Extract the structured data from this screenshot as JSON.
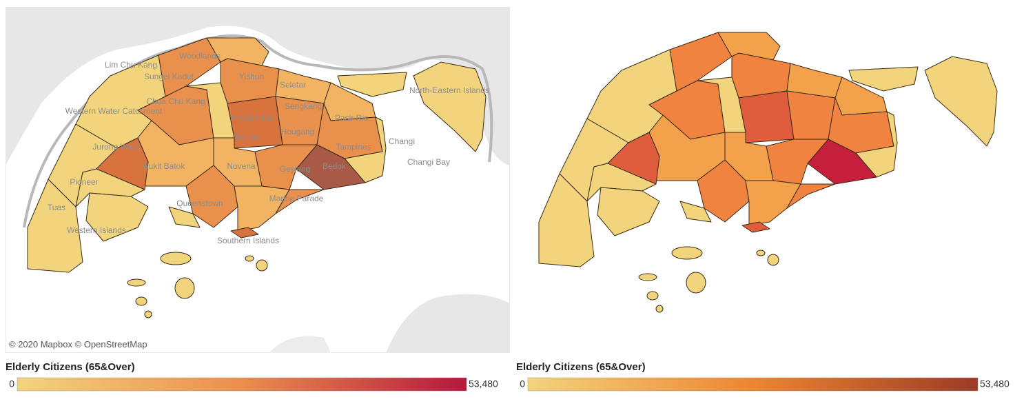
{
  "maps": [
    {
      "attribution": "© 2020 Mapbox © OpenStreetMap",
      "place_labels": [
        "Lim Chu Kang",
        "Woodlands",
        "Sungei Kadut",
        "Yishun",
        "Seletar",
        "Western Water Catchment",
        "Choa Chu Kang",
        "Ang Mo Kio",
        "Sengkang",
        "Pasir Ris",
        "North-Eastern Islands",
        "Jurong West",
        "Bishan",
        "Hougang",
        "Tampines",
        "Changi",
        "Bedok",
        "Changi Bay",
        "Bukit Batok",
        "Novena",
        "Geylang",
        "Pioneer",
        "Tuas",
        "Queenstown",
        "Marine Parade",
        "Western Islands",
        "Southern Islands"
      ],
      "legend": {
        "title": "Elderly Citizens (65&Over)",
        "min": 0,
        "max": {
          "value": 53480,
          "label": "53,480"
        },
        "colors": [
          "#f2d47c",
          "#ec8e4e",
          "#b5173e"
        ]
      }
    },
    {
      "legend": {
        "title": "Elderly Citizens (65&Over)",
        "min": 0,
        "max": {
          "value": 53480,
          "label": "53,480"
        },
        "colors": [
          "#f2d47c",
          "#ee8530",
          "#9c3b27"
        ]
      }
    }
  ]
}
